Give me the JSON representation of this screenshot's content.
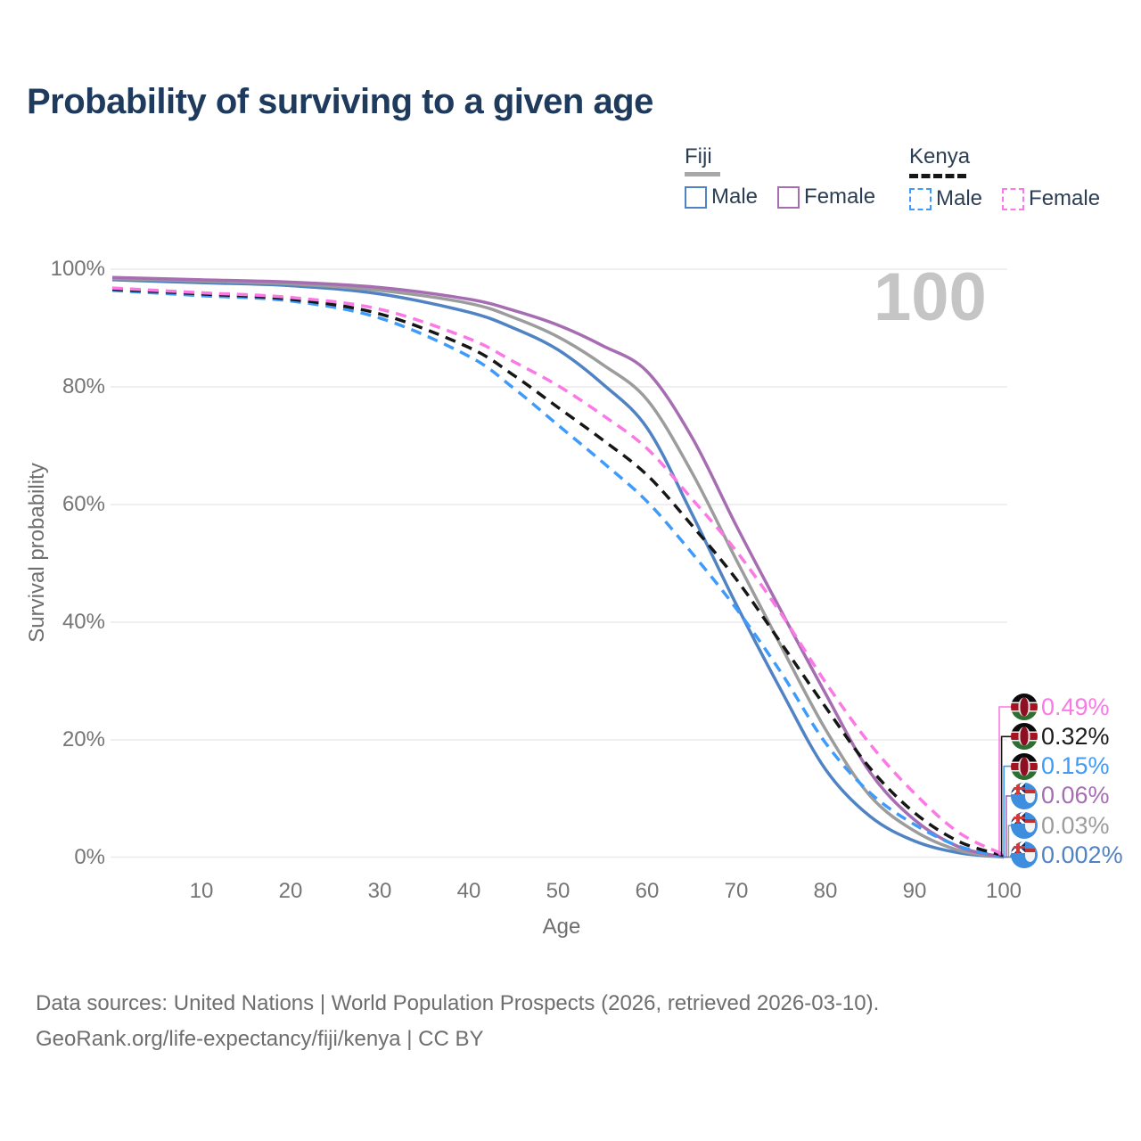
{
  "title": "Probability of surviving to a given age",
  "watermark": "100",
  "legend": {
    "groups": [
      {
        "label": "Fiji",
        "line_style": "solid",
        "underline_color": "#a8a8a8",
        "items": [
          {
            "label": "Male",
            "color": "#5083c4"
          },
          {
            "label": "Female",
            "color": "#a76db2"
          }
        ]
      },
      {
        "label": "Kenya",
        "line_style": "dashed",
        "underline_color": "#161616",
        "items": [
          {
            "label": "Male",
            "color": "#3f9bfa"
          },
          {
            "label": "Female",
            "color": "#fb79e4"
          }
        ]
      }
    ]
  },
  "chart_data": {
    "type": "line",
    "title": "Probability of surviving to a given age",
    "xlabel": "Age",
    "ylabel": "Survival probability",
    "xlim": [
      0,
      100
    ],
    "ylim": [
      0,
      100
    ],
    "grid": "horizontal",
    "legend_position": "top-right",
    "x": [
      0,
      10,
      20,
      30,
      40,
      45,
      50,
      55,
      60,
      65,
      70,
      75,
      80,
      85,
      90,
      95,
      100
    ],
    "series": [
      {
        "name": "Fiji Male",
        "country": "Fiji",
        "sex": "Male",
        "color": "#5083c4",
        "dash": false,
        "values": [
          98.2,
          97.7,
          97.2,
          95.8,
          92.7,
          90.0,
          86.3,
          80.5,
          73.0,
          58.5,
          43.0,
          28.5,
          15.0,
          7.0,
          2.8,
          0.8,
          0.002
        ],
        "end_label": "0.002%"
      },
      {
        "name": "Fiji Total",
        "country": "Fiji",
        "sex": "Both",
        "color": "#9c9c9c",
        "dash": false,
        "values": [
          98.4,
          98.0,
          97.5,
          96.4,
          94.2,
          91.8,
          88.5,
          83.8,
          77.8,
          65.5,
          50.6,
          36.0,
          21.8,
          10.5,
          4.5,
          1.2,
          0.03
        ],
        "end_label": "0.03%"
      },
      {
        "name": "Fiji Female",
        "country": "Fiji",
        "sex": "Female",
        "color": "#a76db2",
        "dash": false,
        "values": [
          98.6,
          98.2,
          97.8,
          96.9,
          94.9,
          93.0,
          90.5,
          87.0,
          82.6,
          71.5,
          56.4,
          42.0,
          27.9,
          14.5,
          6.4,
          1.8,
          0.06
        ],
        "end_label": "0.06%"
      },
      {
        "name": "Kenya Male",
        "country": "Kenya",
        "sex": "Male",
        "color": "#3f9bfa",
        "dash": true,
        "values": [
          96.4,
          95.5,
          94.6,
          91.7,
          85.2,
          79.8,
          73.5,
          67.2,
          60.5,
          51.8,
          42.3,
          31.5,
          19.5,
          11.0,
          5.6,
          1.9,
          0.15
        ],
        "end_label": "0.15%"
      },
      {
        "name": "Kenya Total",
        "country": "Kenya",
        "sex": "Both",
        "color": "#161616",
        "dash": true,
        "values": [
          96.6,
          95.8,
          94.9,
          92.4,
          86.7,
          82.0,
          76.5,
          71.0,
          65.0,
          56.5,
          47.3,
          36.5,
          25.6,
          15.2,
          7.6,
          2.7,
          0.32
        ],
        "end_label": "0.32%"
      },
      {
        "name": "Kenya Female",
        "country": "Kenya",
        "sex": "Female",
        "color": "#fb79e4",
        "dash": true,
        "values": [
          96.8,
          96.0,
          95.2,
          93.2,
          88.2,
          84.3,
          80.2,
          75.2,
          69.5,
          61.0,
          52.1,
          41.5,
          29.8,
          19.3,
          10.9,
          4.2,
          0.49
        ],
        "end_label": "0.49%"
      }
    ],
    "yticks": [
      {
        "label": "100%",
        "value": 100
      },
      {
        "label": "80%",
        "value": 80
      },
      {
        "label": "60%",
        "value": 60
      },
      {
        "label": "40%",
        "value": 40
      },
      {
        "label": "20%",
        "value": 20
      },
      {
        "label": "0%",
        "value": 0
      }
    ],
    "xticks": [
      10,
      20,
      30,
      40,
      50,
      60,
      70,
      80,
      90,
      100
    ]
  },
  "end_labels": [
    {
      "flag_class": "flag kenya",
      "country": "Kenya",
      "series": "Kenya Female",
      "value": "0.49%",
      "color": "#fb79e4"
    },
    {
      "flag_class": "flag kenya",
      "country": "Kenya",
      "series": "Kenya Total",
      "value": "0.32%",
      "color": "#1b1b1b"
    },
    {
      "flag_class": "flag kenya",
      "country": "Kenya",
      "series": "Kenya Male",
      "value": "0.15%",
      "color": "#3f9bfa"
    },
    {
      "flag_class": "flag fiji",
      "country": "Fiji",
      "series": "Fiji Female",
      "value": "0.06%",
      "color": "#a76db2"
    },
    {
      "flag_class": "flag fiji",
      "country": "Fiji",
      "series": "Fiji Total",
      "value": "0.03%",
      "color": "#9c9c9c"
    },
    {
      "flag_class": "flag fiji",
      "country": "Fiji",
      "series": "Fiji Male",
      "value": "0.002%",
      "color": "#5083c4"
    }
  ],
  "footer": {
    "line1": "Data sources: United Nations | World Population Prospects (2026, retrieved 2026-03-10).",
    "line2": "GeoRank.org/life-expectancy/fiji/kenya | CC BY"
  }
}
